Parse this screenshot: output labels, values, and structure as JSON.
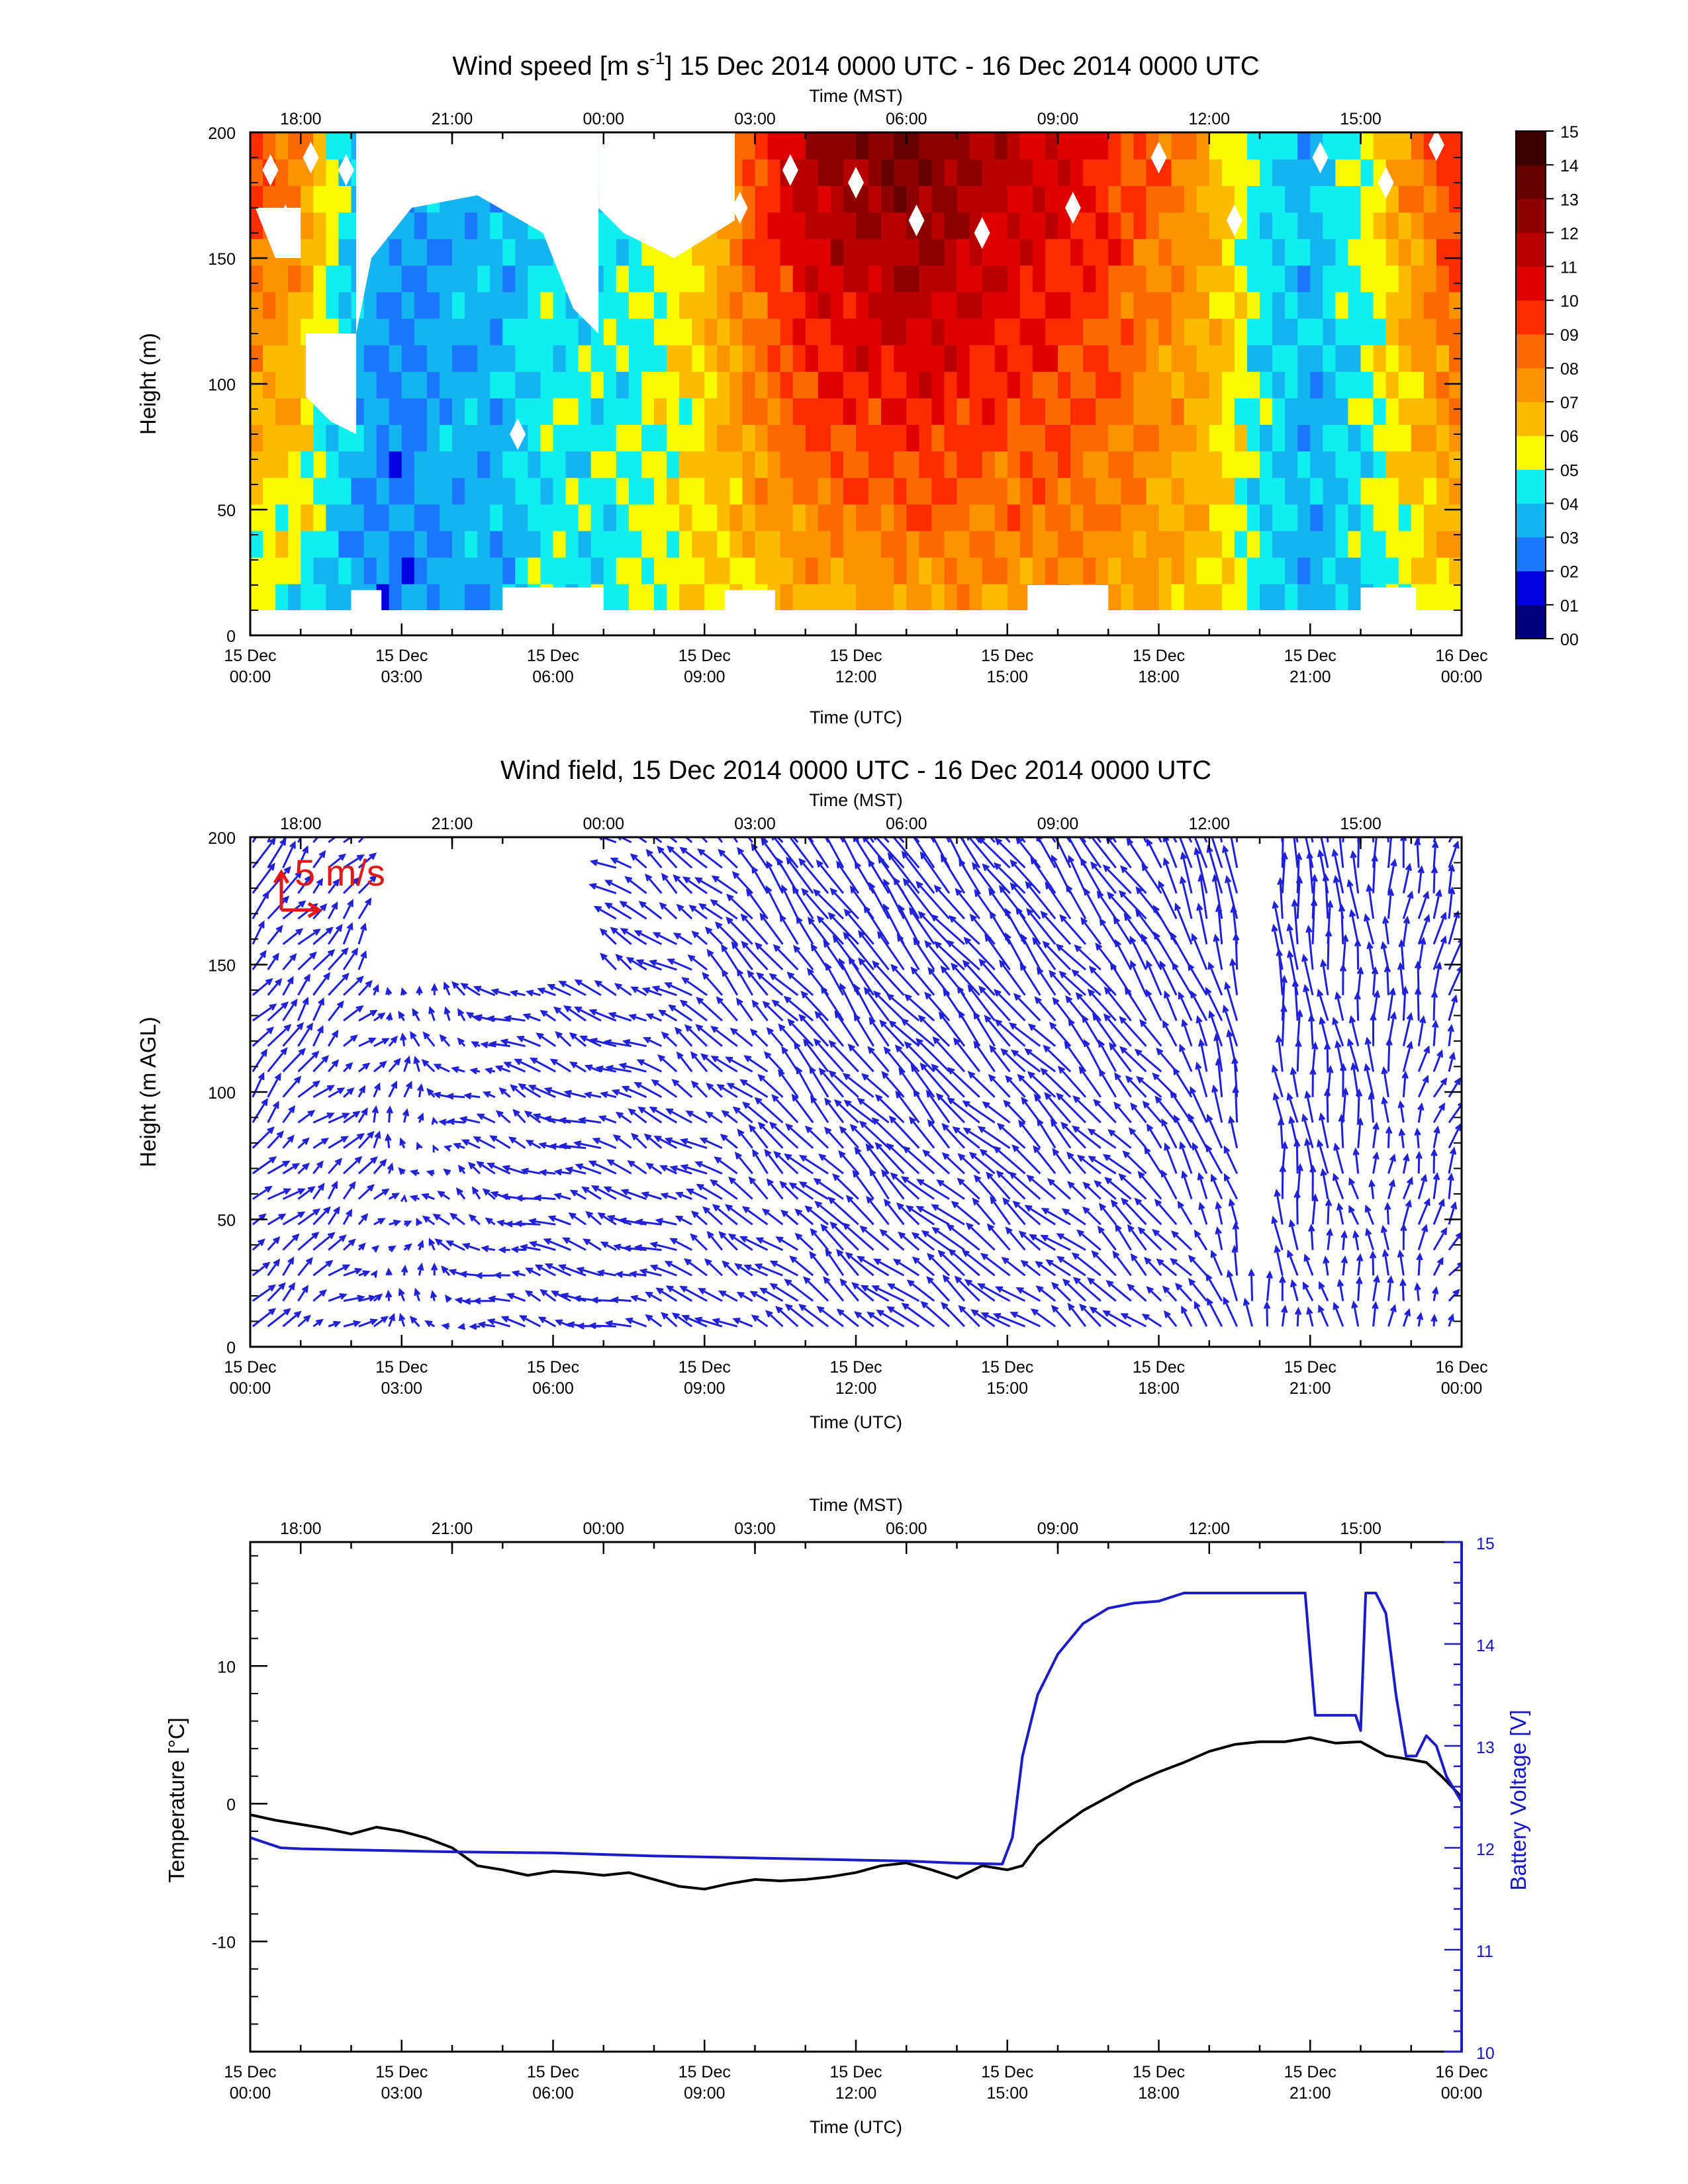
{
  "colors": {
    "arrow": "#2020d8",
    "temperature": "#000000",
    "battery": "#1c1cc8",
    "scale_arrow": "#e01818"
  },
  "utc_ticks": [
    "15 Dec|00:00",
    "15 Dec|03:00",
    "15 Dec|06:00",
    "15 Dec|09:00",
    "15 Dec|12:00",
    "15 Dec|15:00",
    "15 Dec|18:00",
    "15 Dec|21:00",
    "16 Dec|00:00"
  ],
  "mst_ticks": [
    "18:00",
    "21:00",
    "00:00",
    "03:00",
    "06:00",
    "09:00",
    "12:00",
    "15:00"
  ],
  "chart_data": [
    {
      "type": "heatmap",
      "title": "Wind speed [m s-1] 15 Dec 2014 0000 UTC - 16 Dec 2014 0000 UTC",
      "title_main": "Wind speed [m s",
      "title_sup": "-1",
      "title_rest": "] 15 Dec 2014 0000 UTC - 16 Dec 2014 0000 UTC",
      "xlabel_bottom": "Time (UTC)",
      "xlabel_top": "Time (MST)",
      "ylabel": "Height (m)",
      "xlim_hours_utc": [
        0,
        24
      ],
      "ylim": [
        0,
        200
      ],
      "yticks": [
        "0",
        "50",
        "100",
        "150",
        "200"
      ],
      "colorbar": {
        "labels": [
          "00",
          "01",
          "02",
          "03",
          "04",
          "05",
          "06",
          "07",
          "08",
          "09",
          "10",
          "11",
          "12",
          "13",
          "14",
          "15"
        ],
        "colors": [
          "#00007a",
          "#0000e0",
          "#1a78ff",
          "#14b4f0",
          "#10eef0",
          "#fbfb00",
          "#fbbc00",
          "#fb9400",
          "#fb6a00",
          "#fb2c00",
          "#e00000",
          "#b80000",
          "#8c0000",
          "#640000",
          "#3a0000"
        ]
      },
      "profile": {
        "hours": [
          0,
          1,
          2,
          3,
          4,
          5,
          6,
          7,
          8,
          9,
          10,
          11,
          12,
          13,
          14,
          15,
          16,
          17,
          18,
          19,
          20,
          21,
          22,
          23,
          24
        ],
        "speed_surface": [
          4.5,
          4.5,
          3.2,
          2.5,
          3.5,
          3.5,
          4.8,
          4.5,
          5.5,
          5.8,
          6.0,
          6.4,
          6.6,
          6.8,
          7.0,
          7.0,
          7.2,
          7.2,
          6.8,
          6.2,
          4.2,
          3.3,
          4.0,
          5.0,
          6.0
        ],
        "speed_top": [
          9.5,
          8.0,
          4.0,
          2.8,
          3.5,
          3.6,
          4.3,
          4.4,
          4.8,
          6.5,
          9.5,
          12.0,
          12.8,
          13.2,
          12.6,
          11.5,
          10.8,
          10.0,
          8.5,
          7.0,
          4.6,
          3.6,
          5.2,
          8.0,
          10.0
        ]
      }
    },
    {
      "type": "vector",
      "title": "Wind field, 15 Dec 2014 0000 UTC - 16 Dec 2014 0000 UTC",
      "xlabel_bottom": "Time (UTC)",
      "xlabel_top": "Time (MST)",
      "ylabel": "Height (m AGL)",
      "xlim_hours_utc": [
        0,
        24
      ],
      "ylim": [
        0,
        200
      ],
      "yticks": [
        "0",
        "50",
        "100",
        "150",
        "200"
      ],
      "scale_label": "5 m/s",
      "field": {
        "hours": [
          0,
          2,
          4,
          6,
          8,
          10,
          12,
          14,
          16,
          18,
          20,
          22,
          24
        ],
        "u": [
          2.5,
          2.0,
          -1.5,
          -3.0,
          -3.0,
          -3.0,
          -3.5,
          -4.0,
          -3.5,
          -3.0,
          -0.5,
          -0.5,
          1.5
        ],
        "v": [
          3.0,
          2.0,
          1.0,
          1.2,
          1.5,
          3.0,
          4.5,
          4.5,
          4.0,
          4.0,
          6.0,
          4.5,
          3.5
        ]
      }
    },
    {
      "type": "line",
      "title": "",
      "xlabel_bottom": "Time (UTC)",
      "xlabel_top": "Time (MST)",
      "ylabel": "Temperature [°C]",
      "ylabel_right": "Battery Voltage [V]",
      "xlim_hours_utc": [
        0,
        24
      ],
      "ylim": [
        -18,
        19
      ],
      "yticks": [
        "-10",
        "0",
        "10"
      ],
      "ylim_right": [
        10,
        15
      ],
      "yticks_right": [
        "10",
        "11",
        "12",
        "13",
        "14",
        "15"
      ],
      "series": [
        {
          "name": "Temperature",
          "axis": "left",
          "x": [
            0,
            0.5,
            1,
            1.5,
            2,
            2.5,
            3,
            3.5,
            4,
            4.5,
            5,
            5.5,
            6,
            6.5,
            7,
            7.5,
            8,
            8.5,
            9,
            9.5,
            10,
            10.5,
            11,
            11.5,
            12,
            12.5,
            13,
            13.5,
            14,
            14.5,
            15,
            15.3,
            15.6,
            16,
            16.5,
            17,
            17.5,
            18,
            18.5,
            19,
            19.5,
            20,
            20.5,
            21,
            21.5,
            22,
            22.5,
            23,
            23.3,
            23.6,
            24
          ],
          "y": [
            -0.8,
            -1.2,
            -1.5,
            -1.8,
            -2.2,
            -1.7,
            -2.0,
            -2.5,
            -3.2,
            -4.5,
            -4.8,
            -5.2,
            -4.9,
            -5.0,
            -5.2,
            -5.0,
            -5.5,
            -6.0,
            -6.2,
            -5.8,
            -5.5,
            -5.6,
            -5.5,
            -5.3,
            -5.0,
            -4.5,
            -4.3,
            -4.8,
            -5.4,
            -4.5,
            -4.8,
            -4.5,
            -3.0,
            -1.8,
            -0.5,
            0.5,
            1.5,
            2.3,
            3.0,
            3.8,
            4.3,
            4.5,
            4.5,
            4.8,
            4.4,
            4.5,
            3.5,
            3.2,
            3.0,
            2.0,
            0.5
          ]
        },
        {
          "name": "Battery Voltage",
          "axis": "right",
          "x": [
            0,
            0.3,
            0.6,
            1,
            2,
            4,
            6,
            8,
            10,
            12,
            13,
            14,
            14.9,
            15.1,
            15.3,
            15.6,
            16,
            16.5,
            17,
            17.5,
            18,
            18.5,
            19,
            19.5,
            20,
            20.5,
            20.9,
            21.1,
            21.3,
            21.6,
            21.9,
            22.0,
            22.1,
            22.3,
            22.5,
            22.7,
            22.9,
            23.1,
            23.3,
            23.5,
            23.7,
            24
          ],
          "y": [
            12.1,
            12.05,
            12.0,
            11.99,
            11.98,
            11.96,
            11.95,
            11.92,
            11.9,
            11.88,
            11.87,
            11.85,
            11.84,
            12.1,
            12.9,
            13.5,
            13.9,
            14.2,
            14.35,
            14.4,
            14.42,
            14.5,
            14.5,
            14.5,
            14.5,
            14.5,
            14.5,
            13.3,
            13.3,
            13.3,
            13.3,
            13.15,
            14.5,
            14.5,
            14.3,
            13.5,
            12.9,
            12.9,
            13.1,
            13.0,
            12.7,
            12.45
          ]
        }
      ]
    }
  ]
}
